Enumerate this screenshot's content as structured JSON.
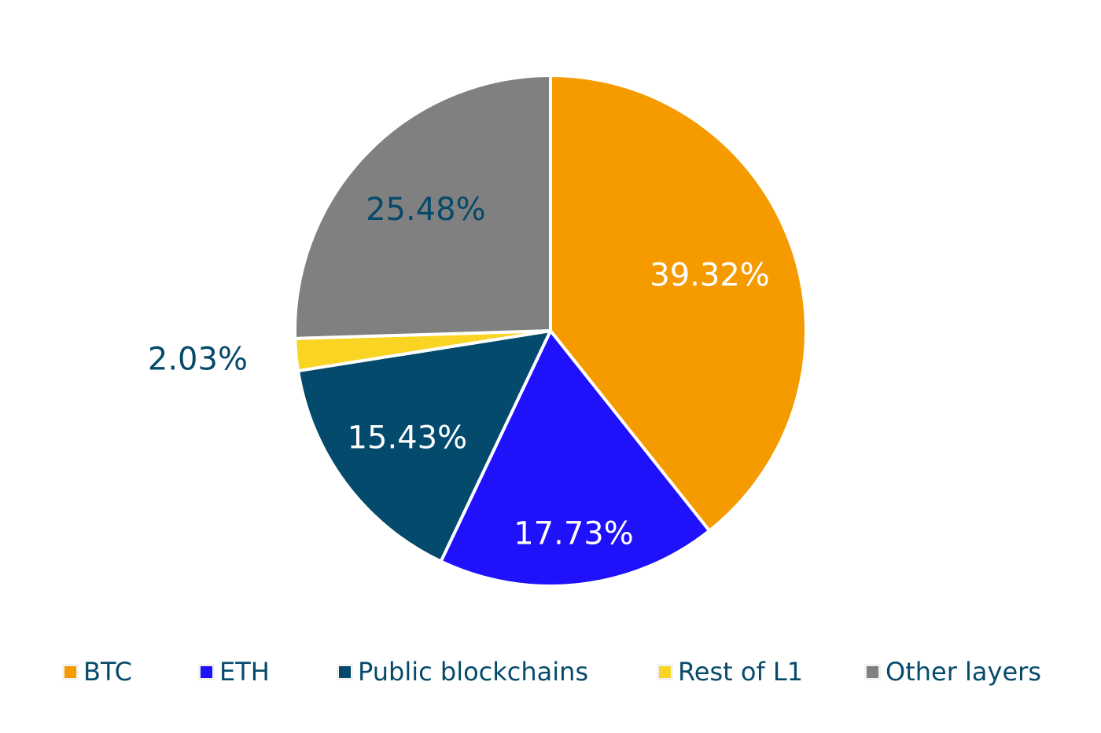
{
  "chart_data": {
    "type": "pie",
    "title": "",
    "slices": [
      {
        "name": "BTC",
        "value": 39.32,
        "label": "39.32%",
        "color": "#f59b00",
        "label_color": "#ffffff"
      },
      {
        "name": "ETH",
        "value": 17.73,
        "label": "17.73%",
        "color": "#1f12fa",
        "label_color": "#ffffff"
      },
      {
        "name": "Public blockchains",
        "value": 15.43,
        "label": "15.43%",
        "color": "#034a6c",
        "label_color": "#ffffff"
      },
      {
        "name": "Rest of L1",
        "value": 2.03,
        "label": "2.03%",
        "color": "#f9d423",
        "label_color": "#064a6b"
      },
      {
        "name": "Other layers",
        "value": 25.48,
        "label": "25.48%",
        "color": "#808080",
        "label_color": "#064a6b"
      }
    ],
    "legend_position": "bottom",
    "legend_text_color": "#064a6b"
  }
}
